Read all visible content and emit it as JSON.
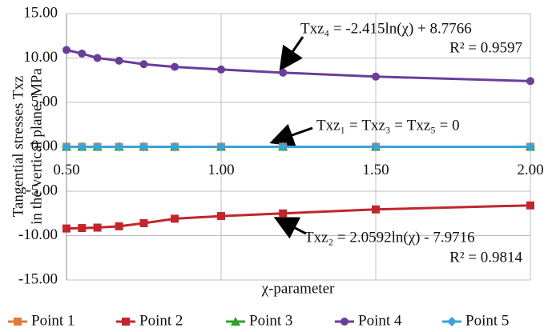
{
  "chart_data": {
    "type": "line",
    "y_label_lines": [
      "Tangential stresses Txz",
      "in the vertical plane, MPa"
    ],
    "x_label": "χ-parameter",
    "x": [
      0.5,
      0.55,
      0.6,
      0.67,
      0.75,
      0.85,
      1.0,
      1.2,
      1.5,
      2.0
    ],
    "xlim": [
      0.5,
      2.0
    ],
    "xticks": [
      {
        "value": 0.5,
        "label": "0.50"
      },
      {
        "value": 1.0,
        "label": "1.00"
      },
      {
        "value": 1.5,
        "label": "1.50"
      },
      {
        "value": 2.0,
        "label": "2.00"
      }
    ],
    "ylim": [
      -15,
      15
    ],
    "yticks": [
      {
        "value": 15,
        "label": "15.00"
      },
      {
        "value": 10,
        "label": "10.00"
      },
      {
        "value": 5,
        "label": "5.00"
      },
      {
        "value": 0,
        "label": "0.00"
      },
      {
        "value": -5,
        "label": "-5.00"
      },
      {
        "value": -10,
        "label": "-10.00"
      },
      {
        "value": -15,
        "label": "-15.00"
      }
    ],
    "grid": true,
    "legend": "bottom",
    "series": [
      {
        "name": "Point 1",
        "color": "#e07b39",
        "marker": "square",
        "values": [
          0,
          0,
          0,
          0,
          0,
          0,
          0,
          0,
          0,
          0
        ]
      },
      {
        "name": "Point 2",
        "color": "#c0262b",
        "marker": "square",
        "values": [
          -9.2,
          -9.15,
          -9.1,
          -8.95,
          -8.6,
          -8.1,
          -7.8,
          -7.5,
          -7.05,
          -6.6
        ]
      },
      {
        "name": "Point 3",
        "color": "#2ca02c",
        "marker": "triangle",
        "values": [
          0,
          0,
          0,
          0,
          0,
          0,
          0,
          0,
          0,
          0
        ]
      },
      {
        "name": "Point 4",
        "color": "#6a3d9a",
        "marker": "circle",
        "values": [
          10.9,
          10.5,
          10.0,
          9.7,
          9.3,
          9.0,
          8.7,
          8.35,
          7.9,
          7.4
        ]
      },
      {
        "name": "Point 5",
        "color": "#3ba3d8",
        "marker": "diamond",
        "values": [
          0,
          0,
          0,
          0,
          0,
          0,
          0,
          0,
          0,
          0
        ]
      }
    ],
    "annotations": [
      "Τxz₄ = -2.415ln(χ) + 8.7766",
      "R² = 0.9597",
      "Τxz₁ = Τxz₃ = Τxz₅ = 0",
      "Τxz₂ = 2.0592ln(χ) - 7.9716",
      "R² = 0.9814"
    ]
  }
}
